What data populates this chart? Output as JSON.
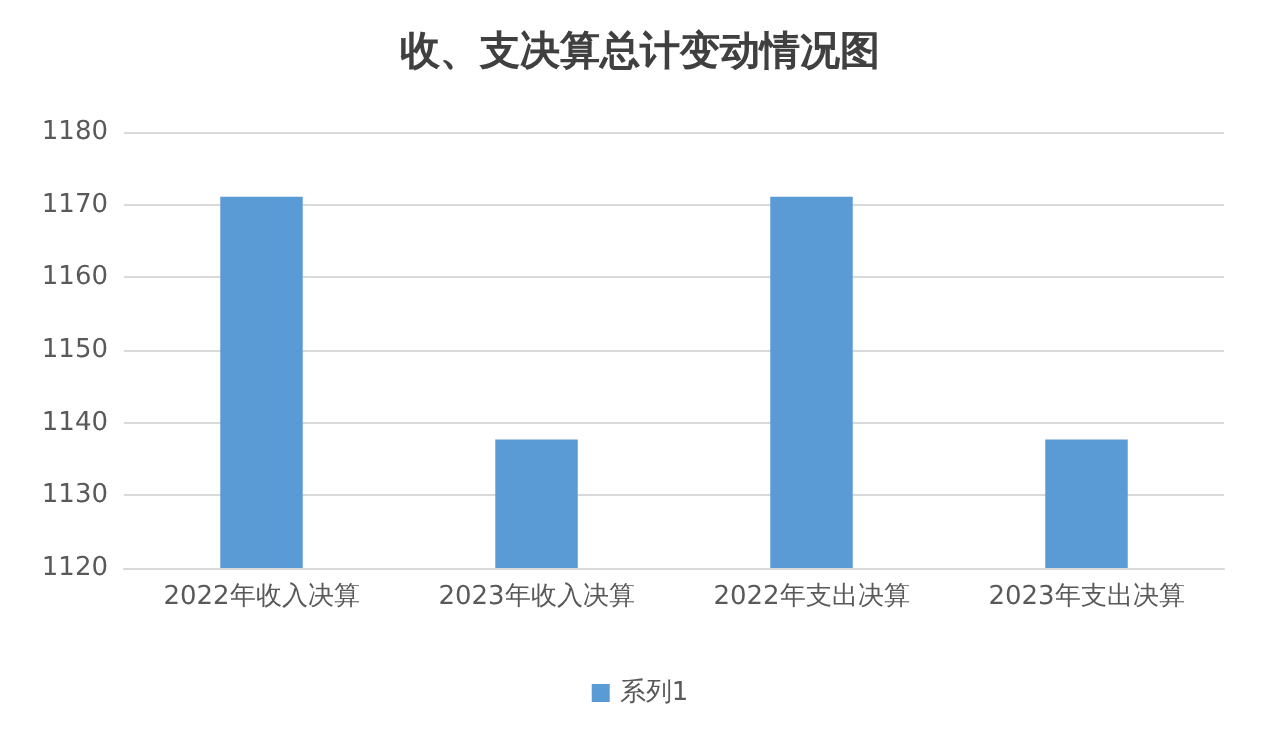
{
  "chart_data": {
    "type": "bar",
    "title": "收、支决算总计变动情况图",
    "categories": [
      "2022年收入决算",
      "2023年收入决算",
      "2022年支出决算",
      "2023年支出决算"
    ],
    "series": [
      {
        "name": "系列1",
        "color": "#5b9bd5",
        "values": [
          1171.1,
          1137.7,
          1171.1,
          1137.7
        ]
      }
    ],
    "ylim": [
      1120,
      1180
    ],
    "yticks": [
      1120,
      1130,
      1140,
      1150,
      1160,
      1170,
      1180
    ],
    "grid": "y",
    "legend": "bottom"
  }
}
